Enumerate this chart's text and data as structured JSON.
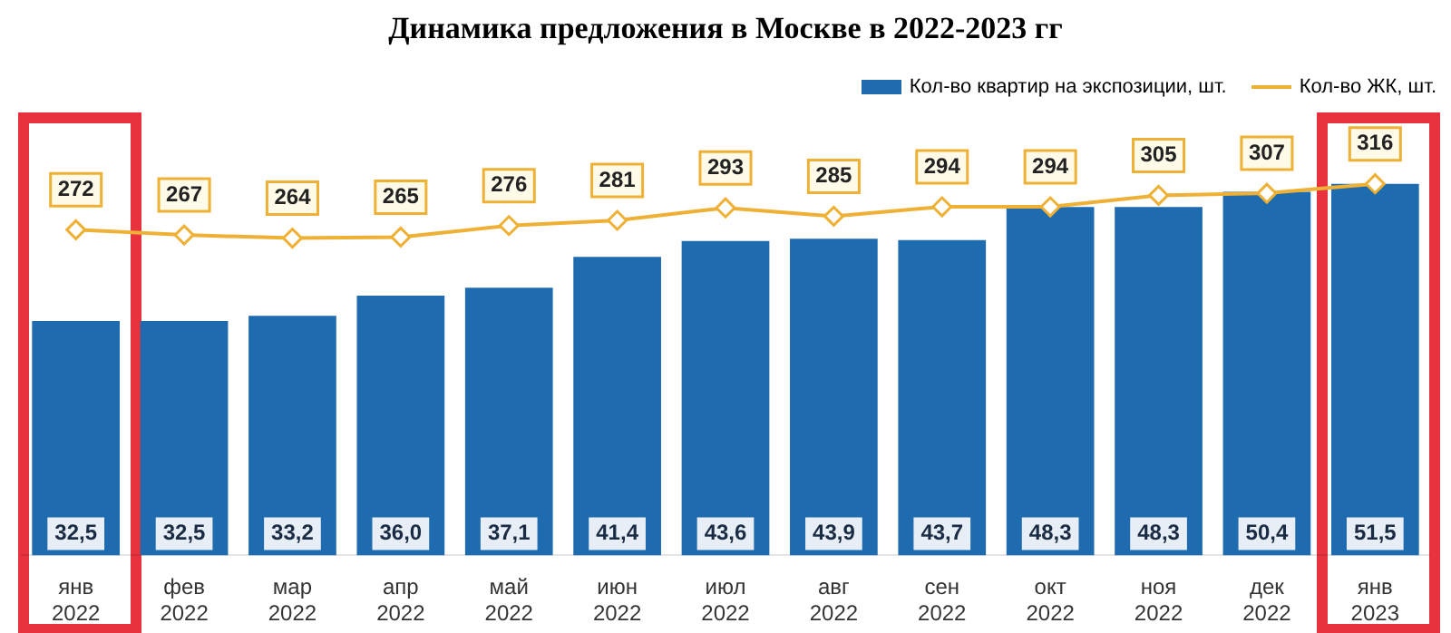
{
  "chart_data": {
    "type": "bar",
    "title": "Динамика предложения в Москве в 2022-2023 гг",
    "categories": [
      "янв 2022",
      "фев 2022",
      "мар 2022",
      "апр 2022",
      "май 2022",
      "июн 2022",
      "июл 2022",
      "авг 2022",
      "сен 2022",
      "окт 2022",
      "ноя 2022",
      "дек 2022",
      "янв 2023"
    ],
    "series": [
      {
        "name": "Кол-во квартир на экспозиции, шт.",
        "color": "#1f6bb0",
        "values": [
          32.5,
          32.5,
          33.2,
          36.0,
          37.1,
          41.4,
          43.6,
          43.9,
          43.7,
          48.3,
          48.3,
          50.4,
          51.5
        ],
        "value_labels": [
          "32,5",
          "32,5",
          "33,2",
          "36,0",
          "37,1",
          "41,4",
          "43,6",
          "43,9",
          "43,7",
          "48,3",
          "48,3",
          "50,4",
          "51,5"
        ]
      },
      {
        "name": "Кол-во ЖК, шт.",
        "type": "line",
        "axis": "y2",
        "color": "#efb135",
        "values": [
          272,
          267,
          264,
          265,
          276,
          281,
          293,
          285,
          294,
          294,
          305,
          307,
          316
        ]
      }
    ],
    "data_labels": true,
    "legend": "top right",
    "marker": "diamond",
    "grid": false
  }
}
